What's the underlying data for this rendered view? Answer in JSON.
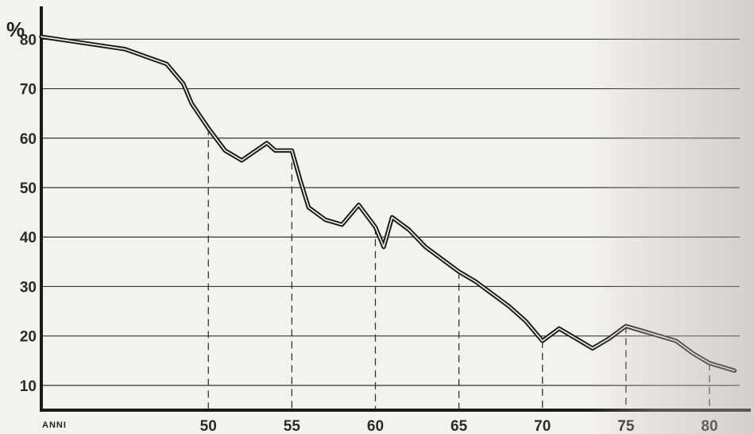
{
  "chart_data": {
    "type": "line",
    "title": "",
    "unit_label": "%",
    "x_label": "ANNI",
    "xlim": [
      40,
      82
    ],
    "ylim": [
      5,
      86
    ],
    "x_ticks": [
      50,
      55,
      60,
      65,
      70,
      75,
      80
    ],
    "x_tick_labels": [
      "50",
      "55",
      "60",
      "65",
      "70",
      "75",
      "80"
    ],
    "y_ticks": [
      10,
      20,
      30,
      40,
      50,
      60,
      70,
      80
    ],
    "y_tick_labels": [
      "10",
      "20",
      "30",
      "40",
      "50",
      "60",
      "70",
      "80"
    ],
    "grid": "horizontal",
    "dropline_years": [
      50,
      55,
      60,
      65,
      70,
      75,
      80
    ],
    "series": [
      {
        "x": [
          40,
          42,
          44,
          45,
          47.5,
          48.5,
          49,
          50,
          51,
          52,
          53.5,
          54,
          55,
          55.5,
          56,
          57,
          58,
          59,
          60,
          60.5,
          61,
          62,
          63,
          64,
          65,
          66,
          67,
          68,
          69,
          70,
          71,
          72,
          73,
          74,
          75,
          76,
          77,
          78,
          79,
          80,
          81.5
        ],
        "values": [
          80.5,
          79.5,
          78.5,
          78,
          75,
          71,
          67,
          62,
          57.5,
          55.5,
          59,
          57.5,
          57.5,
          51.5,
          46,
          43.5,
          42.5,
          46.5,
          42,
          38,
          44,
          41.5,
          38,
          35.5,
          33,
          31,
          28.5,
          26,
          23,
          19,
          21.5,
          19.5,
          17.5,
          19.5,
          22,
          21,
          20,
          19,
          16.5,
          14.5,
          13
        ]
      }
    ],
    "colors": {
      "line": "#1a1a1a",
      "grid": "#333333",
      "axis": "#1a1a1a",
      "paper": "#f4f2ee"
    }
  }
}
